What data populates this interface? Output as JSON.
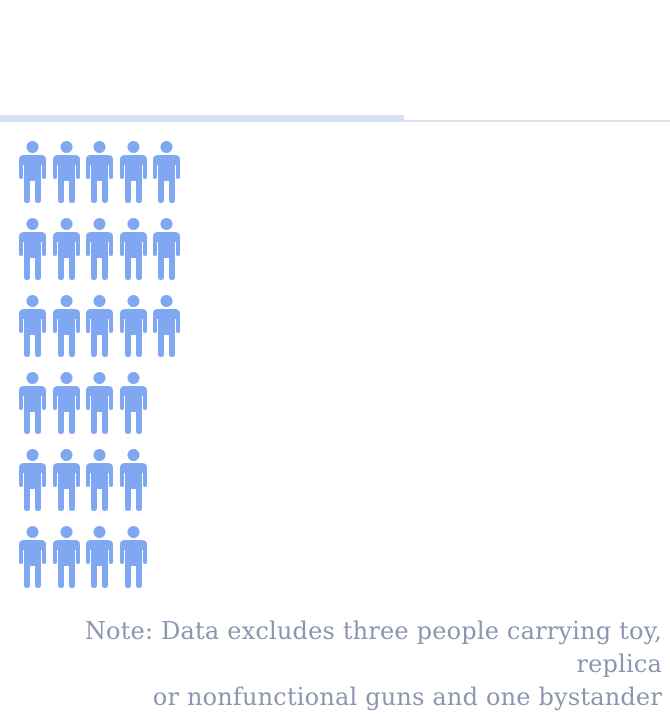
{
  "chart_data": {
    "type": "pictogram",
    "icon": "person-icon",
    "icon_color": "#7fa7f2",
    "rows": [
      5,
      5,
      5,
      4,
      4,
      4
    ],
    "total": 27
  },
  "note": {
    "line1": "Note: Data excludes three people carrying toy, replica",
    "line2": "or nonfunctional guns and one bystander"
  },
  "colors": {
    "divider": "#d5dff0",
    "note_text": "#8d96b0"
  }
}
